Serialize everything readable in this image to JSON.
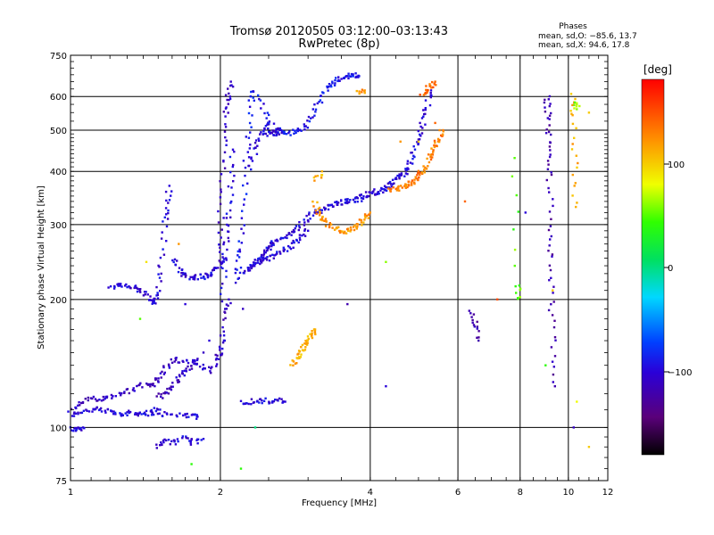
{
  "chart_data": {
    "type": "scatter",
    "title": "Tromsø 20120505 03:12:00–03:13:43",
    "subtitle": "RwPretec (8p)",
    "xlabel": "Frequency [MHz]",
    "ylabel": "Stationary phase Virtual Height [km]",
    "x_scale": "log",
    "y_scale": "log",
    "xlim": [
      1,
      12
    ],
    "ylim": [
      75,
      750
    ],
    "x_ticks": [
      "1",
      "2",
      "4",
      "6",
      "8",
      "10",
      "12"
    ],
    "y_ticks": [
      "75",
      "100",
      "200",
      "300",
      "400",
      "500",
      "600",
      "750"
    ],
    "grid": true,
    "phases": {
      "heading": "Phases",
      "line1": "mean, sd,O: −85.6, 13.7",
      "line2": "mean, sd,X:  94.6, 17.8"
    },
    "colorbar": {
      "label": "[deg]",
      "ticks": [
        "100",
        "0",
        "−100"
      ],
      "range": [
        -180,
        180
      ]
    },
    "traces": [
      {
        "phase": -100,
        "points": [
          [
            1.0,
            99
          ],
          [
            1.03,
            99
          ],
          [
            1.06,
            100
          ]
        ]
      },
      {
        "phase": -100,
        "points": [
          [
            1.0,
            107
          ],
          [
            1.05,
            109
          ],
          [
            1.1,
            110
          ],
          [
            1.15,
            110
          ],
          [
            1.2,
            109
          ],
          [
            1.25,
            108
          ],
          [
            1.3,
            108
          ],
          [
            1.35,
            108
          ],
          [
            1.4,
            108
          ],
          [
            1.45,
            108
          ],
          [
            1.48,
            110
          ],
          [
            1.55,
            107
          ],
          [
            1.65,
            107
          ],
          [
            1.75,
            107
          ],
          [
            1.8,
            106
          ]
        ]
      },
      {
        "phase": -110,
        "points": [
          [
            1.0,
            110
          ],
          [
            1.05,
            114
          ],
          [
            1.1,
            117
          ],
          [
            1.15,
            117
          ],
          [
            1.2,
            118
          ],
          [
            1.28,
            120
          ],
          [
            1.35,
            124
          ],
          [
            1.42,
            126
          ],
          [
            1.48,
            127
          ],
          [
            1.5,
            131
          ],
          [
            1.55,
            138
          ],
          [
            1.62,
            145
          ],
          [
            1.7,
            142
          ],
          [
            1.8,
            140
          ],
          [
            1.9,
            136
          ],
          [
            1.97,
            145
          ],
          [
            2.0,
            150
          ],
          [
            2.02,
            160
          ],
          [
            2.05,
            185
          ],
          [
            2.08,
            200
          ]
        ]
      },
      {
        "phase": -110,
        "points": [
          [
            1.5,
            118
          ],
          [
            1.55,
            120
          ],
          [
            1.6,
            125
          ],
          [
            1.65,
            130
          ],
          [
            1.7,
            135
          ],
          [
            1.75,
            140
          ],
          [
            1.8,
            145
          ]
        ]
      },
      {
        "phase": -100,
        "points": [
          [
            1.5,
            90
          ],
          [
            1.55,
            93
          ],
          [
            1.6,
            92
          ],
          [
            1.7,
            95
          ],
          [
            1.75,
            92
          ],
          [
            1.85,
            94
          ]
        ]
      },
      {
        "phase": -100,
        "points": [
          [
            1.2,
            215
          ],
          [
            1.25,
            215
          ],
          [
            1.3,
            215
          ],
          [
            1.35,
            213
          ],
          [
            1.4,
            208
          ],
          [
            1.45,
            200
          ],
          [
            1.48,
            195
          ],
          [
            1.5,
            210
          ],
          [
            1.52,
            240
          ],
          [
            1.55,
            300
          ],
          [
            1.57,
            330
          ],
          [
            1.58,
            370
          ]
        ]
      },
      {
        "phase": -100,
        "points": [
          [
            1.6,
            250
          ],
          [
            1.65,
            235
          ],
          [
            1.7,
            228
          ],
          [
            1.75,
            226
          ],
          [
            1.8,
            226
          ],
          [
            1.85,
            226
          ],
          [
            1.9,
            228
          ],
          [
            1.95,
            232
          ],
          [
            2.0,
            240
          ],
          [
            2.05,
            250
          ]
        ]
      },
      {
        "phase": -110,
        "points": [
          [
            1.98,
            250
          ],
          [
            2.0,
            300
          ],
          [
            2.02,
            380
          ],
          [
            2.04,
            470
          ],
          [
            2.06,
            560
          ],
          [
            2.08,
            600
          ],
          [
            2.1,
            650
          ]
        ]
      },
      {
        "phase": -100,
        "points": [
          [
            2.02,
            200
          ],
          [
            2.04,
            250
          ],
          [
            2.06,
            280
          ],
          [
            2.08,
            320
          ],
          [
            2.1,
            380
          ],
          [
            2.12,
            450
          ]
        ]
      },
      {
        "phase": -90,
        "points": [
          [
            2.15,
            220
          ],
          [
            2.18,
            240
          ],
          [
            2.2,
            270
          ],
          [
            2.22,
            330
          ],
          [
            2.25,
            420
          ],
          [
            2.28,
            500
          ],
          [
            2.3,
            600
          ]
        ]
      },
      {
        "phase": -100,
        "points": [
          [
            2.3,
            400
          ],
          [
            2.35,
            450
          ],
          [
            2.4,
            480
          ],
          [
            2.45,
            500
          ],
          [
            2.5,
            520
          ]
        ]
      },
      {
        "phase": -100,
        "points": [
          [
            2.3,
            240
          ],
          [
            2.35,
            245
          ],
          [
            2.4,
            250
          ],
          [
            2.45,
            258
          ],
          [
            2.5,
            265
          ],
          [
            2.55,
            270
          ],
          [
            2.6,
            275
          ],
          [
            2.7,
            280
          ],
          [
            2.8,
            290
          ],
          [
            2.9,
            300
          ],
          [
            3.0,
            310
          ],
          [
            3.1,
            320
          ],
          [
            3.2,
            325
          ],
          [
            3.3,
            330
          ],
          [
            3.4,
            335
          ],
          [
            3.5,
            338
          ],
          [
            3.6,
            340
          ],
          [
            3.7,
            342
          ],
          [
            3.8,
            345
          ],
          [
            3.9,
            350
          ],
          [
            4.0,
            355
          ],
          [
            4.1,
            358
          ],
          [
            4.2,
            360
          ],
          [
            4.3,
            365
          ],
          [
            4.4,
            370
          ],
          [
            4.5,
            380
          ],
          [
            4.6,
            390
          ],
          [
            4.7,
            400
          ],
          [
            4.8,
            420
          ],
          [
            4.9,
            450
          ],
          [
            5.0,
            480
          ],
          [
            5.1,
            520
          ],
          [
            5.2,
            570
          ],
          [
            5.3,
            620
          ]
        ]
      },
      {
        "phase": -100,
        "points": [
          [
            2.2,
            230
          ],
          [
            2.3,
            235
          ],
          [
            2.4,
            245
          ],
          [
            2.5,
            250
          ],
          [
            2.6,
            255
          ],
          [
            2.7,
            262
          ],
          [
            2.8,
            270
          ],
          [
            2.9,
            280
          ],
          [
            3.0,
            290
          ]
        ]
      },
      {
        "phase": -90,
        "points": [
          [
            2.3,
            620
          ],
          [
            2.4,
            580
          ],
          [
            2.5,
            520
          ],
          [
            2.6,
            500
          ],
          [
            2.7,
            490
          ],
          [
            2.8,
            495
          ],
          [
            2.9,
            500
          ],
          [
            3.0,
            520
          ],
          [
            3.1,
            560
          ],
          [
            3.2,
            600
          ],
          [
            3.3,
            630
          ],
          [
            3.4,
            650
          ],
          [
            3.5,
            665
          ],
          [
            3.6,
            670
          ],
          [
            3.7,
            672
          ],
          [
            3.8,
            670
          ]
        ]
      },
      {
        "phase": -100,
        "points": [
          [
            2.5,
            490
          ],
          [
            2.55,
            490
          ],
          [
            2.6,
            495
          ],
          [
            2.65,
            500
          ]
        ]
      },
      {
        "phase": 120,
        "points": [
          [
            3.1,
            340
          ],
          [
            3.15,
            320
          ],
          [
            3.2,
            310
          ],
          [
            3.3,
            300
          ],
          [
            3.4,
            295
          ],
          [
            3.5,
            290
          ],
          [
            3.6,
            290
          ],
          [
            3.7,
            292
          ],
          [
            3.8,
            300
          ],
          [
            3.9,
            310
          ],
          [
            4.0,
            320
          ]
        ]
      },
      {
        "phase": 130,
        "points": [
          [
            4.4,
            360
          ],
          [
            4.5,
            365
          ],
          [
            4.6,
            365
          ],
          [
            4.7,
            370
          ],
          [
            4.8,
            375
          ],
          [
            4.9,
            380
          ],
          [
            5.0,
            390
          ],
          [
            5.1,
            400
          ],
          [
            5.2,
            420
          ],
          [
            5.3,
            440
          ],
          [
            5.4,
            460
          ],
          [
            5.5,
            480
          ],
          [
            5.6,
            500
          ]
        ]
      },
      {
        "phase": 110,
        "points": [
          [
            3.1,
            380
          ],
          [
            3.2,
            400
          ]
        ]
      },
      {
        "phase": 110,
        "points": [
          [
            2.8,
            140
          ],
          [
            2.85,
            145
          ],
          [
            2.9,
            150
          ],
          [
            2.95,
            155
          ],
          [
            3.0,
            160
          ],
          [
            3.05,
            165
          ],
          [
            3.1,
            170
          ]
        ]
      },
      {
        "phase": -100,
        "points": [
          [
            2.2,
            115
          ],
          [
            2.3,
            115
          ],
          [
            2.4,
            116
          ],
          [
            2.5,
            115
          ],
          [
            2.6,
            116
          ],
          [
            2.7,
            115
          ]
        ]
      },
      {
        "phase": 140,
        "points": [
          [
            5.1,
            600
          ],
          [
            5.2,
            620
          ],
          [
            5.3,
            640
          ],
          [
            5.4,
            650
          ]
        ]
      },
      {
        "phase": 120,
        "points": [
          [
            3.8,
            610
          ],
          [
            3.9,
            620
          ]
        ]
      },
      {
        "phase": -120,
        "points": [
          [
            6.4,
            190
          ],
          [
            6.5,
            175
          ],
          [
            6.6,
            160
          ]
        ]
      },
      {
        "phase": -120,
        "points": [
          [
            9.05,
            600
          ],
          [
            9.1,
            560
          ],
          [
            9.12,
            500
          ],
          [
            9.15,
            440
          ],
          [
            9.18,
            380
          ],
          [
            9.2,
            300
          ],
          [
            9.22,
            250
          ],
          [
            9.25,
            200
          ],
          [
            9.3,
            160
          ],
          [
            9.4,
            125
          ]
        ]
      },
      {
        "phase": 110,
        "points": [
          [
            10.2,
            610
          ],
          [
            10.25,
            540
          ],
          [
            10.3,
            420
          ],
          [
            10.35,
            330
          ]
        ]
      },
      {
        "phase": 60,
        "points": [
          [
            10.3,
            580
          ],
          [
            10.4,
            560
          ]
        ]
      },
      {
        "phase": 50,
        "points": [
          [
            8.0,
            200
          ],
          [
            7.9,
            215
          ],
          [
            7.8,
            430
          ]
        ]
      }
    ],
    "scatter": [
      [
        1.42,
        245,
        90
      ],
      [
        1.65,
        270,
        120
      ],
      [
        1.7,
        195,
        -100
      ],
      [
        1.85,
        150,
        -110
      ],
      [
        1.9,
        160,
        -100
      ],
      [
        1.38,
        180,
        50
      ],
      [
        1.75,
        82,
        40
      ],
      [
        2.22,
        190,
        -110
      ],
      [
        2.2,
        80,
        40
      ],
      [
        2.35,
        100,
        0
      ],
      [
        3.6,
        195,
        -120
      ],
      [
        4.3,
        125,
        -100
      ],
      [
        4.3,
        245,
        60
      ],
      [
        4.6,
        470,
        120
      ],
      [
        5.0,
        470,
        100
      ],
      [
        5.4,
        520,
        140
      ],
      [
        6.2,
        340,
        140
      ],
      [
        7.2,
        200,
        150
      ],
      [
        8.2,
        320,
        -100
      ],
      [
        9.3,
        210,
        100
      ],
      [
        10.25,
        100,
        -110
      ],
      [
        10.4,
        115,
        80
      ],
      [
        11.0,
        90,
        100
      ],
      [
        11.0,
        550,
        100
      ],
      [
        9.0,
        140,
        40
      ]
    ]
  }
}
